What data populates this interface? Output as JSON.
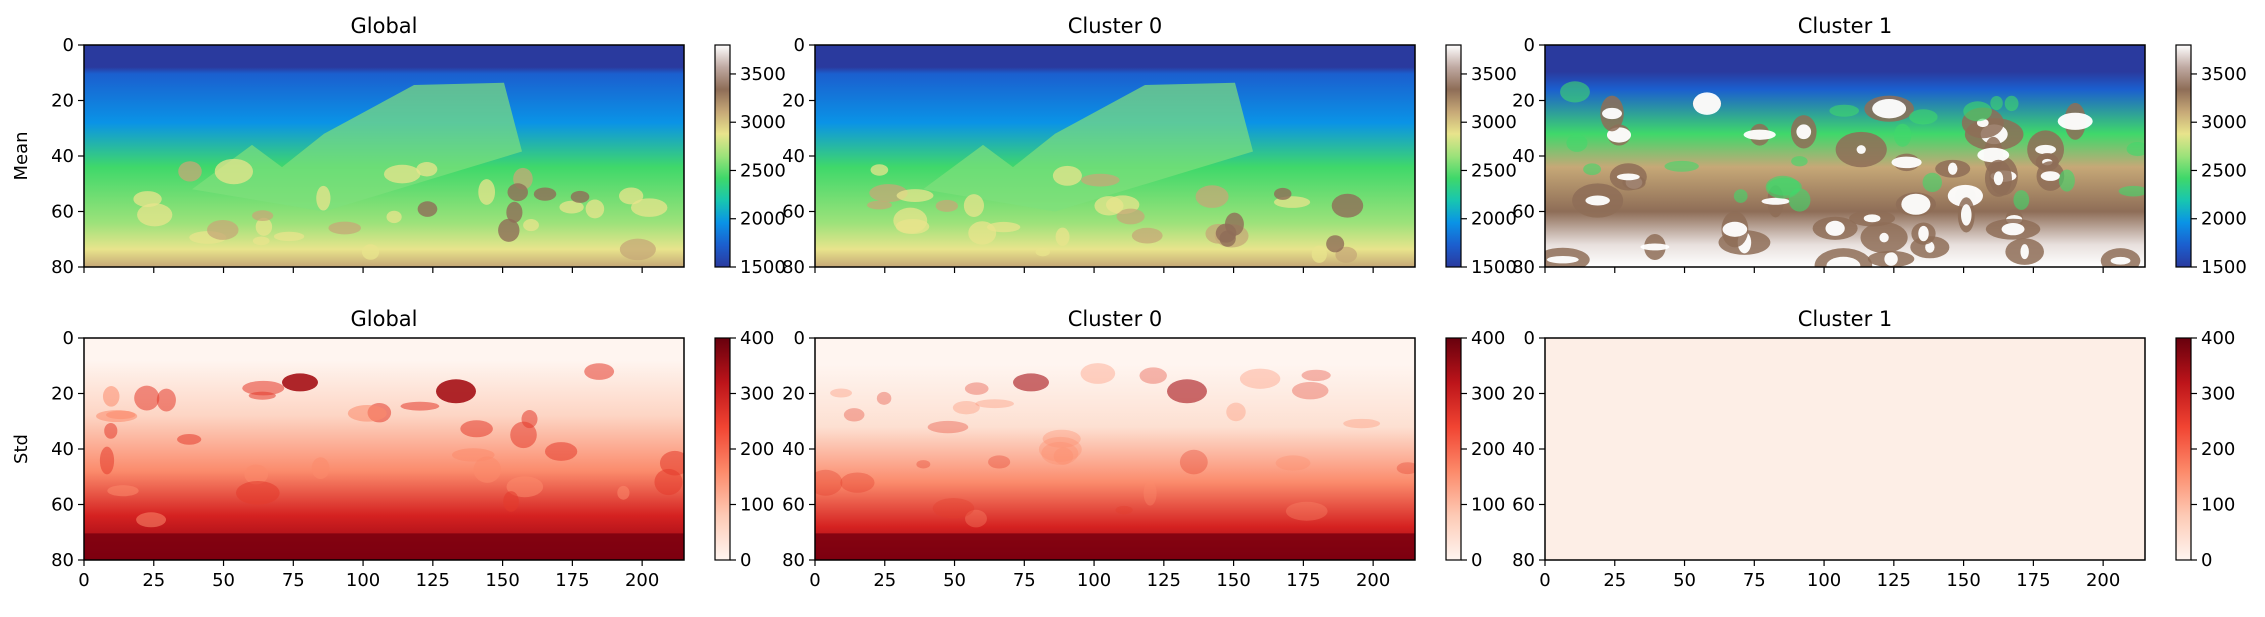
{
  "chart_data": {
    "type": "heatmap",
    "layout": "2x3 grid of heatmaps with colorbars",
    "row_labels": [
      "Mean",
      "Std"
    ],
    "x_ticks": [
      0,
      25,
      50,
      75,
      100,
      125,
      150,
      175,
      200
    ],
    "y_ticks": [
      0,
      20,
      40,
      60,
      80
    ],
    "x_range": [
      0,
      215
    ],
    "y_range": [
      0,
      80
    ],
    "panels": [
      {
        "id": "mean-global",
        "title": "Global",
        "row": 0,
        "col": 0,
        "colormap": "terrain",
        "clim": [
          1500,
          3800
        ],
        "colorbar_ticks": [
          1500,
          2000,
          2500,
          3000,
          3500
        ]
      },
      {
        "id": "mean-cluster0",
        "title": "Cluster 0",
        "row": 0,
        "col": 1,
        "colormap": "terrain",
        "clim": [
          1500,
          3800
        ],
        "colorbar_ticks": [
          1500,
          2000,
          2500,
          3000,
          3500
        ]
      },
      {
        "id": "mean-cluster1",
        "title": "Cluster 1",
        "row": 0,
        "col": 2,
        "colormap": "terrain",
        "clim": [
          1500,
          3800
        ],
        "colorbar_ticks": [
          1500,
          2000,
          2500,
          3000,
          3500
        ]
      },
      {
        "id": "std-global",
        "title": "Global",
        "row": 1,
        "col": 0,
        "colormap": "Reds",
        "clim": [
          0,
          400
        ],
        "colorbar_ticks": [
          0,
          100,
          200,
          300,
          400
        ]
      },
      {
        "id": "std-cluster0",
        "title": "Cluster 0",
        "row": 1,
        "col": 1,
        "colormap": "Reds",
        "clim": [
          0,
          400
        ],
        "colorbar_ticks": [
          0,
          100,
          200,
          300,
          400
        ]
      },
      {
        "id": "std-cluster1",
        "title": "Cluster 1",
        "row": 1,
        "col": 2,
        "colormap": "Reds",
        "clim": [
          0,
          400
        ],
        "colorbar_ticks": [
          0,
          100,
          200,
          300,
          400
        ],
        "uniform_value": 0
      }
    ]
  }
}
